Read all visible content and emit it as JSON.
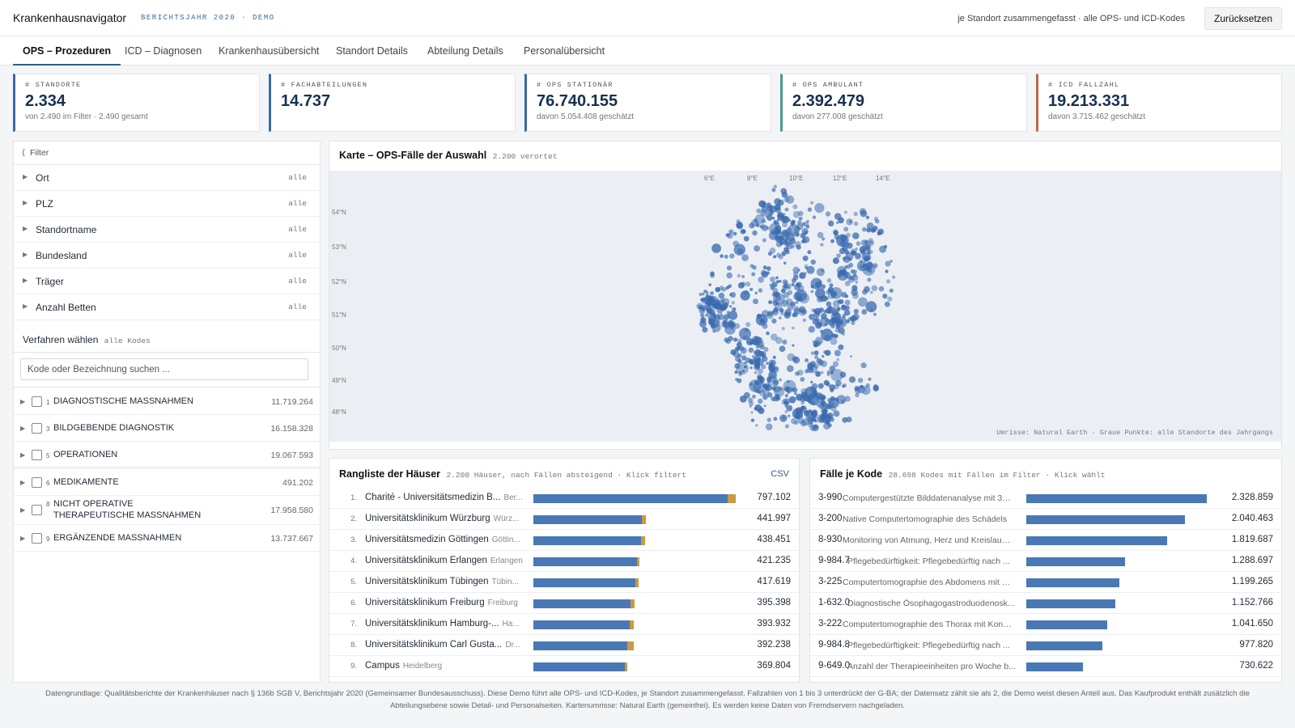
{
  "header": {
    "title": "Krankenhausnavigator",
    "subtitle": "BERICHTSJAHR 2020 · DEMO",
    "note": "je Standort zusammengefasst · alle OPS- und ICD-Kodes",
    "reset_label": "Zurücksetzen"
  },
  "tabs": [
    {
      "label": "OPS – Prozeduren"
    },
    {
      "label": "ICD – Diagnosen"
    },
    {
      "label": "Krankenhausübersicht"
    },
    {
      "label": "Standort Details"
    },
    {
      "label": "Abteilung Details"
    },
    {
      "label": "Personalübersicht"
    }
  ],
  "kpis": [
    {
      "label": "# STANDORTE",
      "value": "2.334",
      "sub": "von 2.490 im Filter · 2.490 gesamt",
      "color": "#3a6aa0"
    },
    {
      "label": "# FACHABTEILUNGEN",
      "value": "14.737",
      "sub": "",
      "color": "#3a6aa0"
    },
    {
      "label": "# OPS STATIONÄR",
      "value": "76.740.155",
      "sub": "davon 5.054.408 geschätzt",
      "color": "#3a6aa0"
    },
    {
      "label": "# OPS AMBULANT",
      "value": "2.392.479",
      "sub": "davon 277.008 geschätzt",
      "color": "#4e9a8c"
    },
    {
      "label": "# ICD FALLZAHL",
      "value": "19.213.331",
      "sub": "davon 3.715.462 geschätzt",
      "color": "#b86a4a"
    }
  ],
  "filter": {
    "header": "Filter",
    "rows": [
      {
        "label": "Ort",
        "value": "alle"
      },
      {
        "label": "PLZ",
        "value": "alle"
      },
      {
        "label": "Standortname",
        "value": "alle"
      },
      {
        "label": "Bundesland",
        "value": "alle"
      },
      {
        "label": "Träger",
        "value": "alle"
      },
      {
        "label": "Anzahl Betten",
        "value": "alle"
      }
    ]
  },
  "procedures": {
    "title": "Verfahren wählen",
    "hint": "alle Kodes",
    "search_placeholder": "Kode oder Bezeichnung suchen ...",
    "categories": [
      {
        "num": "1",
        "label": "DIAGNOSTISCHE MASSNAHMEN",
        "value": "11.719.264"
      },
      {
        "num": "3",
        "label": "BILDGEBENDE DIAGNOSTIK",
        "value": "16.158.328"
      },
      {
        "num": "5",
        "label": "OPERATIONEN",
        "value": "19.067.593"
      },
      {
        "num": "6",
        "label": "MEDIKAMENTE",
        "value": "491.202"
      },
      {
        "num": "8",
        "label": "NICHT OPERATIVE THERAPEUTISCHE MASSNAHMEN",
        "value": "17.958.580"
      },
      {
        "num": "9",
        "label": "ERGÄNZENDE MASSNAHMEN",
        "value": "13.737.667"
      }
    ]
  },
  "map": {
    "title": "Karte – OPS-Fälle der Auswahl",
    "count": "2.200 verortet",
    "lon_labels": [
      "6°E",
      "8°E",
      "10°E",
      "12°E",
      "14°E"
    ],
    "lat_labels": [
      "54°N",
      "53°N",
      "52°N",
      "51°N",
      "50°N",
      "49°N",
      "48°N"
    ],
    "note": "Umrisse: Natural Earth · Graue Punkte: alle Standorte des Jahrgangs",
    "point_color": "#3a6aaf"
  },
  "ranking": {
    "title": "Rangliste der Häuser",
    "hint": "2.200 Häuser, nach Fällen absteigend · Klick filtert",
    "csv_label": "CSV",
    "rows": [
      {
        "rank": "1.",
        "name": "Charité - Universitätsmedizin B...",
        "city": "Ber...",
        "value": "797.102",
        "stat": 0.96,
        "amb": 0.04
      },
      {
        "rank": "2.",
        "name": "Universitätsklinikum Würzburg",
        "city": "Würz...",
        "value": "441.997",
        "stat": 0.535,
        "amb": 0.02
      },
      {
        "rank": "3.",
        "name": "Universitätsmedizin Göttingen",
        "city": "Göttin...",
        "value": "438.451",
        "stat": 0.53,
        "amb": 0.02
      },
      {
        "rank": "4.",
        "name": "Universitätsklinikum Erlangen",
        "city": "Erlangen",
        "value": "421.235",
        "stat": 0.51,
        "amb": 0.015
      },
      {
        "rank": "5.",
        "name": "Universitätsklinikum Tübingen",
        "city": "Tübin...",
        "value": "417.619",
        "stat": 0.505,
        "amb": 0.015
      },
      {
        "rank": "6.",
        "name": "Universitätsklinikum Freiburg",
        "city": "Freiburg",
        "value": "395.398",
        "stat": 0.48,
        "amb": 0.02
      },
      {
        "rank": "7.",
        "name": "Universitätsklinikum Hamburg-...",
        "city": "Ha...",
        "value": "393.932",
        "stat": 0.475,
        "amb": 0.02
      },
      {
        "rank": "8.",
        "name": "Universitätsklinikum Carl Gusta...",
        "city": "Dr...",
        "value": "392.238",
        "stat": 0.465,
        "amb": 0.03
      },
      {
        "rank": "9.",
        "name": "Campus",
        "city": "Heidelberg",
        "value": "369.804",
        "stat": 0.45,
        "amb": 0.015
      }
    ]
  },
  "codes": {
    "title": "Fälle je Kode",
    "hint": "28.698 Kodes mit Fällen im Filter · Klick wählt",
    "rows": [
      {
        "code": "3-990",
        "desc": "Computergestützte Bilddatenanalyse mit 3D...",
        "value": "2.328.859",
        "share": 0.93
      },
      {
        "code": "3-200",
        "desc": "Native Computertomographie des Schädels",
        "value": "2.040.463",
        "share": 0.815
      },
      {
        "code": "8-930",
        "desc": "Monitoring von Atmung, Herz und Kreislauf ...",
        "value": "1.819.687",
        "share": 0.725
      },
      {
        "code": "9-984.7",
        "desc": "Pflegebedürftigkeit: Pflegebedürftig nach ...",
        "value": "1.288.697",
        "share": 0.51
      },
      {
        "code": "3-225",
        "desc": "Computertomographie des Abdomens mit K...",
        "value": "1.199.265",
        "share": 0.48
      },
      {
        "code": "1-632.0",
        "desc": "Diagnostische Ösophagogastroduodenosk...",
        "value": "1.152.766",
        "share": 0.46
      },
      {
        "code": "3-222",
        "desc": "Computertomographie des Thorax mit Kontr...",
        "value": "1.041.650",
        "share": 0.415
      },
      {
        "code": "9-984.8",
        "desc": "Pflegebedürftigkeit: Pflegebedürftig nach ...",
        "value": "977.820",
        "share": 0.39
      },
      {
        "code": "9-649.0",
        "desc": "Anzahl der Therapieeinheiten pro Woche b...",
        "value": "730.622",
        "share": 0.29
      }
    ]
  },
  "footer": "Datengrundlage: Qualitätsberichte der Krankenhäuser nach § 136b SGB V, Berichtsjahr 2020 (Gemeinsamer Bundesausschuss). Diese Demo führt alle OPS- und ICD-Kodes, je Standort zusammengefasst. Fallzahlen von 1 bis 3 unterdrückt der G-BA; der Datensatz zählt sie als 2, die Demo weist diesen Anteil aus. Das Kaufprodukt enthält zusätzlich die Abteilungsebene sowie Detail- und Personalseiten. Kartenumrisse: Natural Earth (gemeinfrei). Es werden keine Daten von Fremdservern nachgeladen."
}
